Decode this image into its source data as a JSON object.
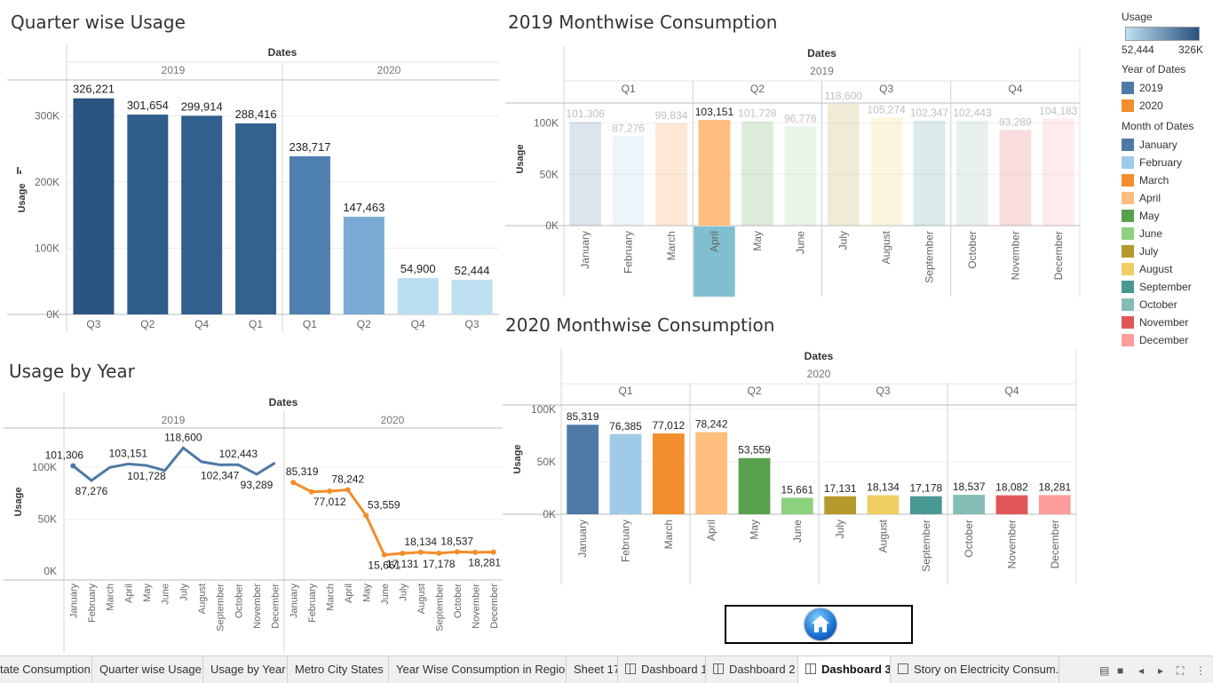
{
  "sheets": {
    "quarter": {
      "title": "Quarter wise Usage"
    },
    "m2019": {
      "title": "2019 Monthwise Consumption"
    },
    "m2020": {
      "title": "2020 Monthwise Consumption"
    },
    "year": {
      "title": "Usage by Year"
    }
  },
  "colors": {
    "months": [
      "#4e79a7",
      "#a0cbe8",
      "#f28e2b",
      "#ffbe7d",
      "#59a14f",
      "#8cd17d",
      "#b6992d",
      "#f1ce63",
      "#499894",
      "#86bcb6",
      "#e15759",
      "#ff9d9a"
    ],
    "y2019": "#4e79a7",
    "y2020": "#f28e2b"
  },
  "legend": {
    "usage_title": "Usage",
    "usage_min": "52,444",
    "usage_max": "326K",
    "year_title": "Year of Dates",
    "years": [
      {
        "label": "2019",
        "color": "#4e79a7"
      },
      {
        "label": "2020",
        "color": "#f28e2b"
      }
    ],
    "month_title": "Month of Dates",
    "months": [
      "January",
      "February",
      "March",
      "April",
      "May",
      "June",
      "July",
      "August",
      "September",
      "October",
      "November",
      "December"
    ]
  },
  "chart_data": [
    {
      "name": "Quarter wise Usage",
      "type": "bar",
      "header": "Dates",
      "panes": [
        "2019",
        "2020"
      ],
      "categories": [
        "Q3",
        "Q2",
        "Q4",
        "Q1",
        "Q1",
        "Q2",
        "Q4",
        "Q3"
      ],
      "years": [
        "2019",
        "2019",
        "2019",
        "2019",
        "2020",
        "2020",
        "2020",
        "2020"
      ],
      "values": [
        326221,
        301654,
        299914,
        288416,
        238717,
        147463,
        54900,
        52444
      ],
      "labels": [
        "326,221",
        "301,654",
        "299,914",
        "288,416",
        "238,717",
        "147,463",
        "54,900",
        "52,444"
      ],
      "ylabel": "Usage",
      "yticks": [
        "0K",
        "100K",
        "200K",
        "300K"
      ],
      "ylim": [
        0,
        350000
      ],
      "colors": [
        "#2a5582",
        "#2f5d8c",
        "#315f8e",
        "#336291",
        "#4e7fb1",
        "#7baad4",
        "#bcdef2",
        "#bfe0f1"
      ]
    },
    {
      "name": "2019 Monthwise Consumption",
      "type": "bar",
      "header": "Dates",
      "year": "2019",
      "quarters": [
        "Q1",
        "Q2",
        "Q3",
        "Q4"
      ],
      "categories": [
        "January",
        "February",
        "March",
        "April",
        "May",
        "June",
        "July",
        "August",
        "September",
        "October",
        "November",
        "December"
      ],
      "values": [
        101306,
        87276,
        99834,
        103151,
        101728,
        96776,
        118600,
        105274,
        102347,
        102443,
        93289,
        104183
      ],
      "labels": [
        "101,306",
        "87,276",
        "99,834",
        "103,151",
        "101,728",
        "96,776",
        "118,600",
        "105,274",
        "102,347",
        "102,443",
        "93,289",
        "104,183"
      ],
      "highlighted": "April",
      "ylabel": "Usage",
      "yticks": [
        "0K",
        "50K",
        "100K"
      ],
      "ylim": [
        0,
        130000
      ]
    },
    {
      "name": "2020 Monthwise Consumption",
      "type": "bar",
      "header": "Dates",
      "year": "2020",
      "quarters": [
        "Q1",
        "Q2",
        "Q3",
        "Q4"
      ],
      "categories": [
        "January",
        "February",
        "March",
        "April",
        "May",
        "June",
        "July",
        "August",
        "September",
        "October",
        "November",
        "December"
      ],
      "values": [
        85319,
        76385,
        77012,
        78242,
        53559,
        15661,
        17131,
        18134,
        17178,
        18537,
        18082,
        18281
      ],
      "labels": [
        "85,319",
        "76,385",
        "77,012",
        "78,242",
        "53,559",
        "15,661",
        "17,131",
        "18,134",
        "17,178",
        "18,537",
        "18,082",
        "18,281"
      ],
      "ylabel": "Usage",
      "yticks": [
        "0K",
        "50K",
        "100K"
      ],
      "ylim": [
        0,
        105000
      ]
    },
    {
      "name": "Usage by Year",
      "type": "line",
      "header": "Dates",
      "panes": [
        "2019",
        "2020"
      ],
      "categories": [
        "January",
        "February",
        "March",
        "April",
        "May",
        "June",
        "July",
        "August",
        "September",
        "October",
        "November",
        "December"
      ],
      "series": [
        {
          "name": "2019",
          "values": [
            101306,
            87276,
            99834,
            103151,
            101728,
            96776,
            118600,
            105274,
            102347,
            102443,
            93289,
            104183
          ],
          "labels": [
            "101,306",
            "87,276",
            "",
            "103,151",
            "101,728",
            "",
            "118,600",
            "",
            "102,347",
            "102,443",
            "93,289",
            ""
          ]
        },
        {
          "name": "2020",
          "values": [
            85319,
            76385,
            77012,
            78242,
            53559,
            15661,
            17131,
            18134,
            17178,
            18537,
            18082,
            18281
          ],
          "labels": [
            "85,319",
            "",
            "77,012",
            "78,242",
            "53,559",
            "15,661",
            "17,131",
            "18,134",
            "17,178",
            "18,537",
            "",
            "18,281"
          ]
        }
      ],
      "ylabel": "Usage",
      "yticks": [
        "0K",
        "50K",
        "100K"
      ],
      "ylim": [
        0,
        130000
      ]
    }
  ],
  "tabs": [
    {
      "label": "tate Consumption",
      "icon": ""
    },
    {
      "label": "Quarter wise Usage",
      "icon": ""
    },
    {
      "label": "Usage by Year",
      "icon": ""
    },
    {
      "label": "Metro City States",
      "icon": ""
    },
    {
      "label": "Year Wise Consumption in Region",
      "icon": ""
    },
    {
      "label": "Sheet 17",
      "icon": ""
    },
    {
      "label": "Dashboard 1",
      "icon": "dashboard-icon"
    },
    {
      "label": "Dashboard 2",
      "icon": "dashboard-icon"
    },
    {
      "label": "Dashboard 3",
      "icon": "dashboard-icon",
      "active": true
    },
    {
      "label": "Story on Electricity Consum...",
      "icon": "story-icon"
    }
  ],
  "controls": {
    "home_icon": "home-icon"
  }
}
